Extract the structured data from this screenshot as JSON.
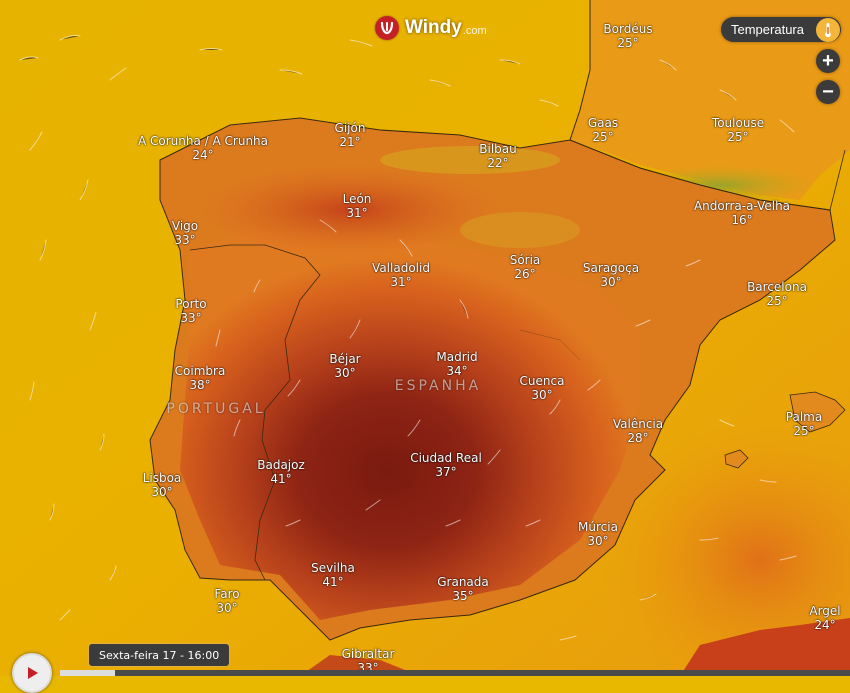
{
  "brand": {
    "name": "Windy",
    "domain": ".com",
    "icon": "windy-logo-icon"
  },
  "layer": {
    "label": "Temperatura",
    "icon": "thermometer-icon"
  },
  "zoom": {
    "in_label": "+",
    "out_label": "−"
  },
  "timeline": {
    "label": "Sexta-feira 17 - 16:00",
    "progress": 0.07
  },
  "play": {
    "icon": "play-icon"
  },
  "countries": [
    {
      "id": "portugal",
      "name": "PORTUGAL"
    },
    {
      "id": "espanha",
      "name": "ESPANHA"
    }
  ],
  "cities": [
    {
      "id": "bordeus",
      "name": "Bordéus",
      "temp": "25°"
    },
    {
      "id": "gaas",
      "name": "Gaas",
      "temp": "25°"
    },
    {
      "id": "toulouse",
      "name": "Toulouse",
      "temp": "25°"
    },
    {
      "id": "a-corunha",
      "name": "A Corunha / A Crunha",
      "temp": "24°"
    },
    {
      "id": "gijon",
      "name": "Gijón",
      "temp": "21°"
    },
    {
      "id": "bilbau",
      "name": "Bilbau",
      "temp": "22°"
    },
    {
      "id": "andorra",
      "name": "Andorra-a-Velha",
      "temp": "16°"
    },
    {
      "id": "leon",
      "name": "León",
      "temp": "31°"
    },
    {
      "id": "vigo",
      "name": "Vigo",
      "temp": "33°"
    },
    {
      "id": "soria",
      "name": "Sória",
      "temp": "26°"
    },
    {
      "id": "saragoca",
      "name": "Saragoça",
      "temp": "30°"
    },
    {
      "id": "valladolid",
      "name": "Valladolid",
      "temp": "31°"
    },
    {
      "id": "barcelona",
      "name": "Barcelona",
      "temp": "25°"
    },
    {
      "id": "porto",
      "name": "Porto",
      "temp": "33°"
    },
    {
      "id": "bejar",
      "name": "Béjar",
      "temp": "30°"
    },
    {
      "id": "madrid",
      "name": "Madrid",
      "temp": "34°"
    },
    {
      "id": "coimbra",
      "name": "Coimbra",
      "temp": "38°"
    },
    {
      "id": "cuenca",
      "name": "Cuenca",
      "temp": "30°"
    },
    {
      "id": "palma",
      "name": "Palma",
      "temp": "25°"
    },
    {
      "id": "valencia",
      "name": "Valência",
      "temp": "28°"
    },
    {
      "id": "badajoz",
      "name": "Badajoz",
      "temp": "41°"
    },
    {
      "id": "ciudad-real",
      "name": "Ciudad Real",
      "temp": "37°"
    },
    {
      "id": "lisboa",
      "name": "Lisboa",
      "temp": "30°"
    },
    {
      "id": "murcia",
      "name": "Múrcia",
      "temp": "30°"
    },
    {
      "id": "sevilha",
      "name": "Sevilha",
      "temp": "41°"
    },
    {
      "id": "granada",
      "name": "Granada",
      "temp": "35°"
    },
    {
      "id": "faro",
      "name": "Faro",
      "temp": "30°"
    },
    {
      "id": "argel",
      "name": "Argel",
      "temp": "24°"
    },
    {
      "id": "gibraltar",
      "name": "Gibraltar",
      "temp": "33°"
    }
  ]
}
